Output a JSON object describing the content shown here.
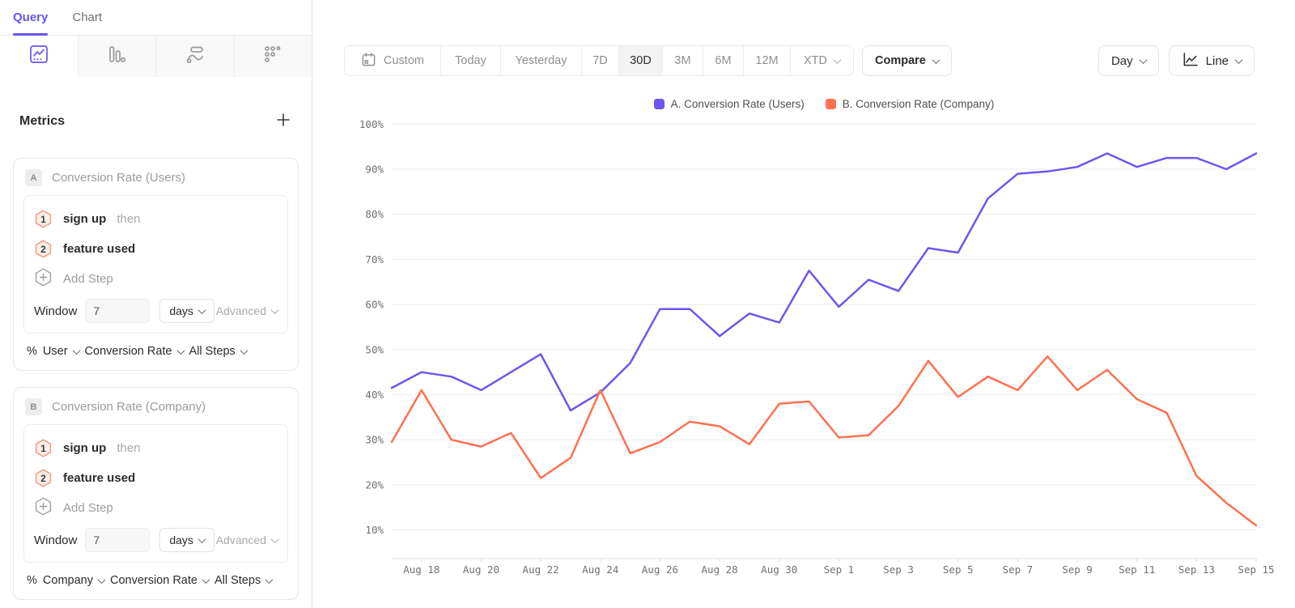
{
  "colors": {
    "accent": "#6753f2",
    "series_a": "#6e56f0",
    "series_b": "#ff7050",
    "step_badge_border": "#f59c83",
    "step_badge_fill": "#fdefe9",
    "grid": "#ededed",
    "axis": "#e2e2e2"
  },
  "sidebar": {
    "tabs": [
      {
        "label": "Query"
      },
      {
        "label": "Chart"
      }
    ],
    "icon_tabs": [
      {
        "icon": "insights-icon",
        "active": true
      },
      {
        "icon": "funnels-icon",
        "active": false
      },
      {
        "icon": "flows-icon",
        "active": false
      },
      {
        "icon": "retention-icon",
        "active": false
      }
    ],
    "metrics": {
      "title": "Metrics",
      "add_icon": "plus-icon"
    },
    "metric_cards": [
      {
        "badge": "A",
        "title": "Conversion Rate (Users)",
        "steps": [
          {
            "num": "1",
            "name": "sign up",
            "suffix": "then"
          },
          {
            "num": "2",
            "name": "feature used",
            "suffix": ""
          }
        ],
        "add_step_label": "Add Step",
        "window": {
          "label": "Window",
          "value": "7",
          "unit": "days",
          "advanced_label": "Advanced"
        },
        "measure": {
          "prefix": "%",
          "entity": "User",
          "metric": "Conversion Rate",
          "steps": "All Steps"
        }
      },
      {
        "badge": "B",
        "title": "Conversion Rate (Company)",
        "steps": [
          {
            "num": "1",
            "name": "sign up",
            "suffix": "then"
          },
          {
            "num": "2",
            "name": "feature used",
            "suffix": ""
          }
        ],
        "add_step_label": "Add Step",
        "window": {
          "label": "Window",
          "value": "7",
          "unit": "days",
          "advanced_label": "Advanced"
        },
        "measure": {
          "prefix": "%",
          "entity": "Company",
          "metric": "Conversion Rate",
          "steps": "All Steps"
        }
      }
    ]
  },
  "toolbar": {
    "date_ranges": [
      {
        "label": "Custom",
        "icon": "calendar-icon"
      },
      {
        "label": "Today"
      },
      {
        "label": "Yesterday"
      },
      {
        "label": "7D"
      },
      {
        "label": "30D",
        "active": true
      },
      {
        "label": "3M"
      },
      {
        "label": "6M"
      },
      {
        "label": "12M"
      },
      {
        "label": "XTD",
        "chevron": true
      }
    ],
    "compare_label": "Compare",
    "granularity_label": "Day",
    "chart_type_label": "Line"
  },
  "legend": {
    "items": [
      {
        "label": "A. Conversion Rate (Users)",
        "color": "#6e56f0"
      },
      {
        "label": "B. Conversion Rate (Company)",
        "color": "#ff7050"
      }
    ]
  },
  "chart_data": {
    "type": "line",
    "x": [
      "Aug 17",
      "Aug 18",
      "Aug 19",
      "Aug 20",
      "Aug 21",
      "Aug 22",
      "Aug 23",
      "Aug 24",
      "Aug 25",
      "Aug 26",
      "Aug 27",
      "Aug 28",
      "Aug 29",
      "Aug 30",
      "Aug 31",
      "Sep 1",
      "Sep 2",
      "Sep 3",
      "Sep 4",
      "Sep 5",
      "Sep 6",
      "Sep 7",
      "Sep 8",
      "Sep 9",
      "Sep 10",
      "Sep 11",
      "Sep 12",
      "Sep 13",
      "Sep 14",
      "Sep 15"
    ],
    "x_tick_labels": [
      "Aug 18",
      "Aug 20",
      "Aug 22",
      "Aug 24",
      "Aug 26",
      "Aug 28",
      "Aug 30",
      "Sep 1",
      "Sep 3",
      "Sep 5",
      "Sep 7",
      "Sep 9",
      "Sep 11",
      "Sep 13",
      "Sep 15"
    ],
    "series": [
      {
        "name": "A. Conversion Rate (Users)",
        "color": "#6e56f0",
        "values": [
          41.5,
          45,
          44,
          41,
          45,
          49,
          36.5,
          40.5,
          47,
          59,
          59,
          53,
          58,
          56,
          67.5,
          59.5,
          65.5,
          63,
          72.5,
          71.5,
          83.5,
          89,
          89.5,
          90.5,
          93.5,
          90.5,
          92.5,
          92.5,
          90,
          93.5
        ]
      },
      {
        "name": "B. Conversion Rate (Company)",
        "color": "#ff7050",
        "values": [
          29.5,
          41,
          30,
          28.5,
          31.5,
          21.5,
          26,
          41,
          27,
          29.5,
          34,
          33,
          29,
          38,
          38.5,
          30.5,
          31,
          37.5,
          47.5,
          39.5,
          44,
          41,
          48.5,
          41,
          45.5,
          39,
          36,
          22,
          16,
          11
        ]
      }
    ],
    "ylim": [
      10,
      100
    ],
    "y_tick_step": 10,
    "y_tick_suffix": "%",
    "grid": "horizontal",
    "legend_position": "top-center"
  }
}
